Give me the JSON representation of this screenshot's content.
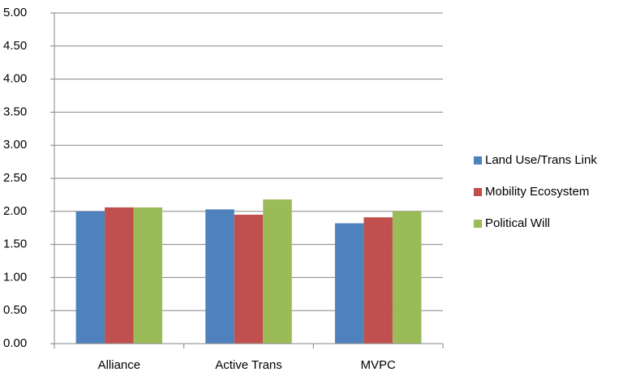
{
  "chart_data": {
    "type": "bar",
    "categories": [
      "Alliance",
      "Active Trans",
      "MVPC"
    ],
    "series": [
      {
        "name": "Land Use/Trans Link",
        "color": "#4f81bd",
        "values": [
          2.0,
          2.03,
          1.82
        ]
      },
      {
        "name": "Mobility Ecosystem",
        "color": "#c0504d",
        "values": [
          2.06,
          1.95,
          1.91
        ]
      },
      {
        "name": "Political Will",
        "color": "#9bbb59",
        "values": [
          2.06,
          2.18,
          2.0
        ]
      }
    ],
    "ylim": [
      0,
      5
    ],
    "yticks": [
      {
        "value": 0,
        "label": "0.00"
      },
      {
        "value": 0.5,
        "label": "0.50"
      },
      {
        "value": 1,
        "label": "1.00"
      },
      {
        "value": 1.5,
        "label": "1.50"
      },
      {
        "value": 2,
        "label": "2.00"
      },
      {
        "value": 2.5,
        "label": "2.50"
      },
      {
        "value": 3,
        "label": "3.00"
      },
      {
        "value": 3.5,
        "label": "3.50"
      },
      {
        "value": 4,
        "label": "4.00"
      },
      {
        "value": 4.5,
        "label": "4.50"
      },
      {
        "value": 5,
        "label": "5.00"
      }
    ],
    "grid": true,
    "legend": "right"
  }
}
